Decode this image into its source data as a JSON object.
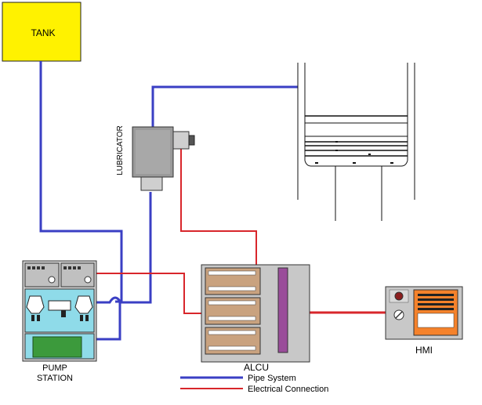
{
  "labels": {
    "tank": "TANK",
    "lubricator": "LUBRICATOR",
    "pump_station_line1": "PUMP",
    "pump_station_line2": "STATION",
    "alcu": "ALCU",
    "hmi": "HMI"
  },
  "legend": {
    "pipe_system": "Pipe System",
    "electrical_connection": "Electrical Connection"
  },
  "colors": {
    "pipe": "#3a3fc4",
    "electrical": "#d8262b",
    "tank_fill": "#fff200",
    "panel_gray": "#c8c8c8",
    "module_tan": "#c9a27f",
    "pump_cyan": "#8fdbe9",
    "pump_green": "#3c9a3c",
    "alcu_purple": "#9a4d9a",
    "hmi_orange": "#f5822b"
  }
}
